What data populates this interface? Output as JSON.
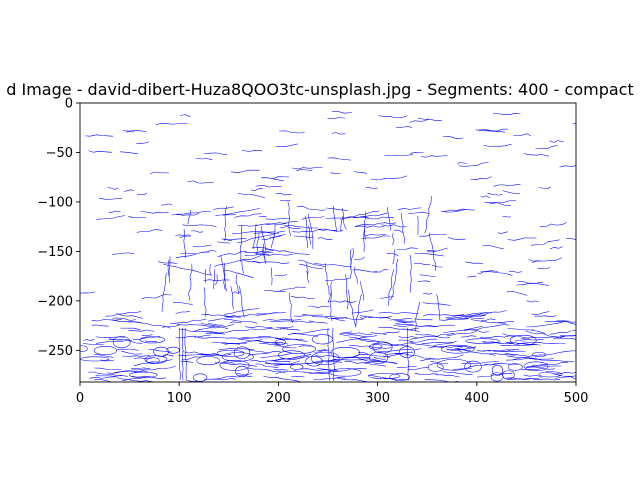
{
  "chart_data": {
    "type": "other",
    "title": "d Image - david-dibert-Huza8QOO3tc-unsplash.jpg - Segments: 400 - compact",
    "xlabel": "",
    "ylabel": "",
    "xlim": [
      0,
      500
    ],
    "ylim": [
      -282,
      0
    ],
    "xticks": [
      0,
      100,
      200,
      300,
      400,
      500
    ],
    "xtick_labels": [
      "0",
      "100",
      "200",
      "300",
      "400",
      "500"
    ],
    "yticks": [
      0,
      -50,
      -100,
      -150,
      -200,
      -250
    ],
    "ytick_labels": [
      "0",
      "−50",
      "−100",
      "−150",
      "−200",
      "−250"
    ],
    "grid": false,
    "line_color": "#0000ff",
    "axes_color": "#000000"
  }
}
